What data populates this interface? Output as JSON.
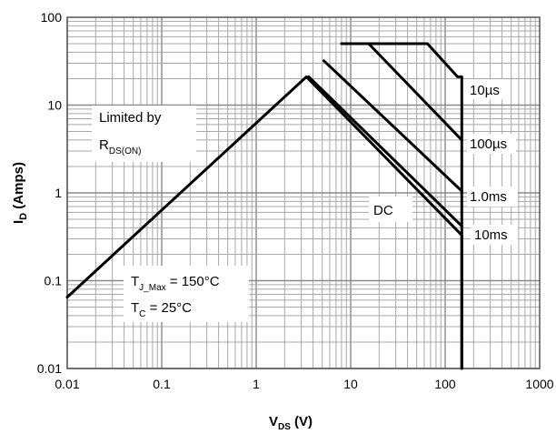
{
  "chart_data": {
    "type": "line",
    "title": "",
    "xlabel": "V",
    "xlabel_sub": "DS",
    "xlabel_unit": " (V)",
    "ylabel": "I",
    "ylabel_sub": "D",
    "ylabel_unit": " (Amps)",
    "xscale": "log",
    "yscale": "log",
    "xlim": [
      0.01,
      1000
    ],
    "ylim": [
      0.01,
      100
    ],
    "grid": true,
    "x_ticks": [
      {
        "value": 0.01,
        "label": "0.01"
      },
      {
        "value": 0.1,
        "label": "0.1"
      },
      {
        "value": 1,
        "label": "1"
      },
      {
        "value": 10,
        "label": "10"
      },
      {
        "value": 100,
        "label": "100"
      },
      {
        "value": 1000,
        "label": "1000"
      }
    ],
    "y_ticks": [
      {
        "value": 100,
        "label": "100"
      },
      {
        "value": 10,
        "label": "10"
      },
      {
        "value": 1,
        "label": "1"
      },
      {
        "value": 0.1,
        "label": "0.1"
      },
      {
        "value": 0.01,
        "label": "0.01"
      }
    ],
    "series": [
      {
        "name": "DC",
        "x": [
          0.01,
          3.4,
          150,
          150
        ],
        "y": [
          0.065,
          21.0,
          0.33,
          0.01
        ]
      },
      {
        "name": "10ms",
        "x": [
          3.6,
          150
        ],
        "y": [
          21.0,
          0.42
        ]
      },
      {
        "name": "1.0ms",
        "x": [
          5.2,
          150
        ],
        "y": [
          32.0,
          1.05
        ]
      },
      {
        "name": "100µs",
        "x": [
          8.0,
          15.5,
          150
        ],
        "y": [
          50.0,
          50.0,
          4.0
        ]
      },
      {
        "name": "10µs",
        "x": [
          15.5,
          65,
          135,
          150,
          150
        ],
        "y": [
          50.0,
          50.0,
          21.0,
          21.0,
          0.01
        ]
      }
    ],
    "annotations": {
      "limited_line1": "Limited by",
      "limited_line2_main": "R",
      "limited_line2_sub": "DS(ON)",
      "tj_main": "T",
      "tj_sub": "J_Max",
      "tj_value": " = 150°C",
      "tc_main": "T",
      "tc_sub": "C",
      "tc_value": " = 25°C"
    },
    "curve_labels": {
      "us10_main": "10",
      "us10_unit": "µs",
      "us100_main": "100",
      "us100_unit": "µs",
      "ms1": "1.0ms",
      "dc": "DC",
      "ms10": "10ms"
    }
  }
}
